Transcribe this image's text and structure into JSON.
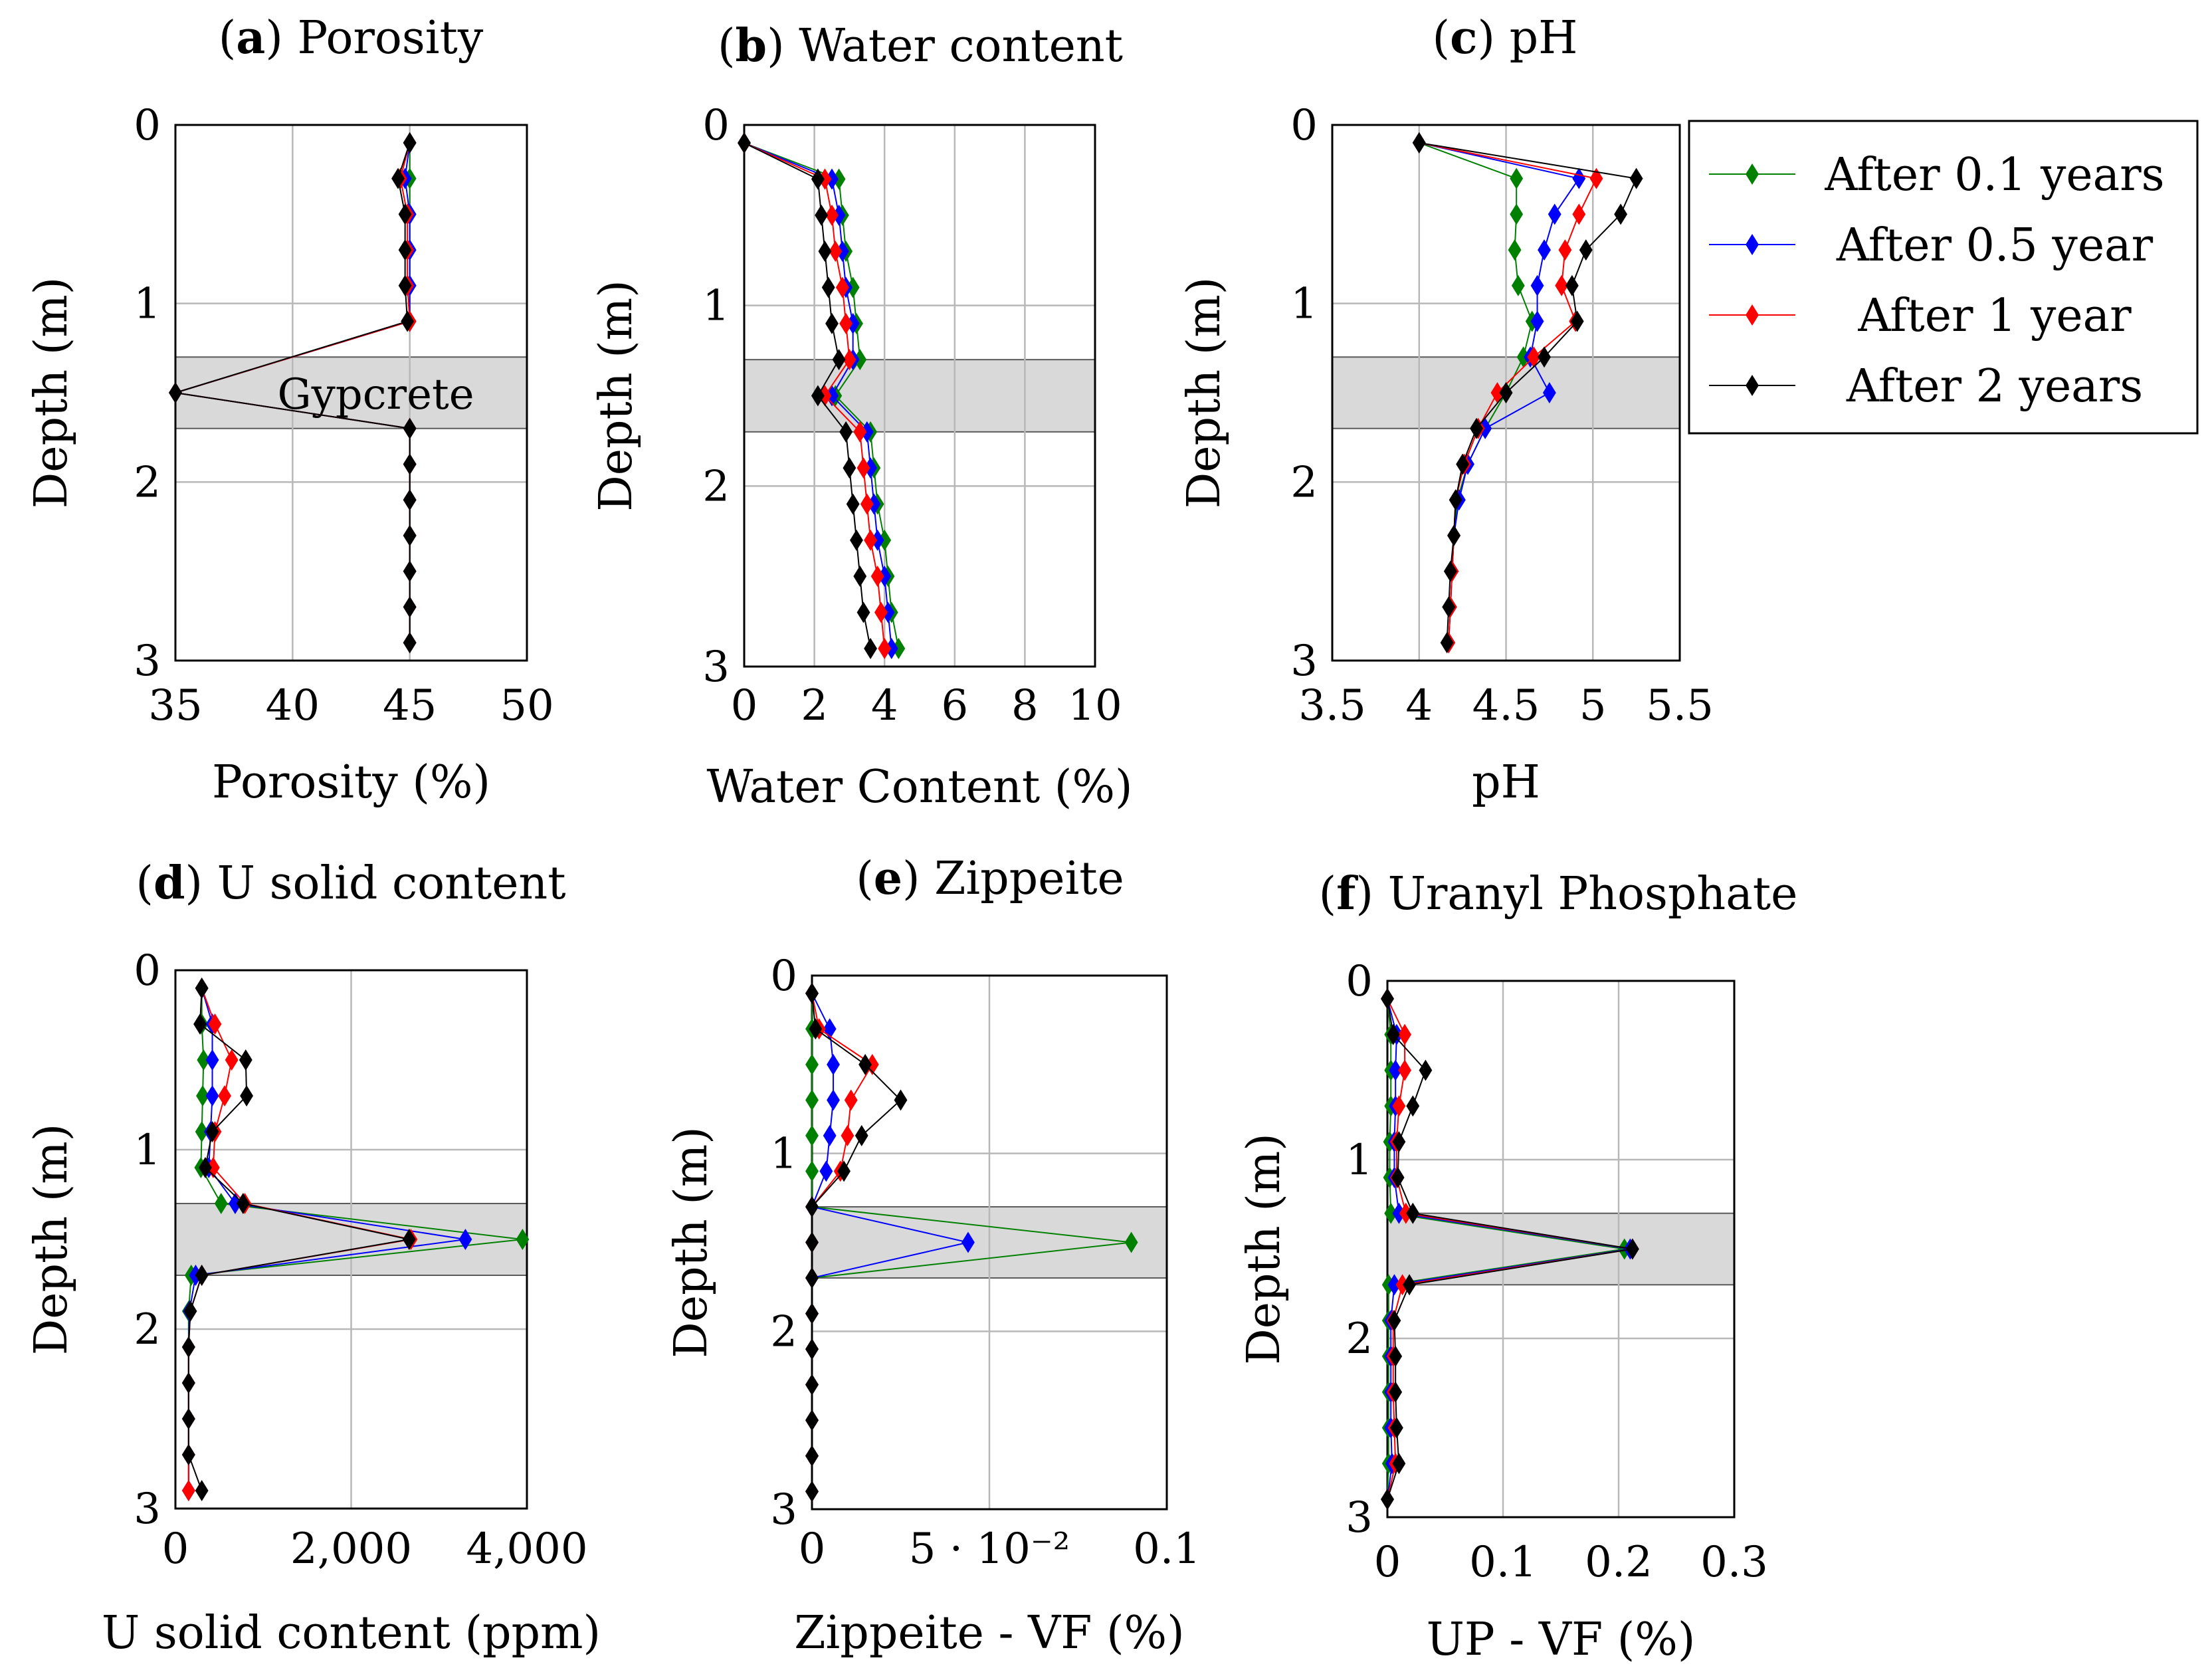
{
  "legend": {
    "entries": [
      {
        "name": "After 0.1 years",
        "color": "#008000"
      },
      {
        "name": "After 0.5 year",
        "color": "#0000ff"
      },
      {
        "name": "After 1 year",
        "color": "#ff0000"
      },
      {
        "name": "After 2 years",
        "color": "#000000"
      }
    ]
  },
  "chart_data": [
    {
      "type": "line",
      "title_letter": "a",
      "title_rest": " Porosity",
      "xlabel": "Porosity (%)",
      "ylabel": "Depth (m)",
      "xlim": [
        35,
        50
      ],
      "ylim": [
        0,
        3
      ],
      "y_inverted": true,
      "xticks": [
        35,
        40,
        45,
        50
      ],
      "xtick_labels": [
        "35",
        "40",
        "45",
        "50"
      ],
      "yticks": [
        0,
        1,
        2,
        3
      ],
      "ytick_labels": [
        "0",
        "1",
        "2",
        "3"
      ],
      "band": [
        1.3,
        1.7
      ],
      "band_label": "Gypcrete",
      "series": [
        {
          "name": "After 0.1 years",
          "x": [
            45,
            45,
            45,
            45,
            45,
            45,
            35,
            45,
            45,
            45,
            45,
            45,
            45,
            45
          ],
          "y": [
            0.1,
            0.3,
            0.5,
            0.7,
            0.9,
            1.1,
            1.5,
            1.7,
            1.9,
            2.1,
            2.3,
            2.5,
            2.7,
            2.9
          ]
        },
        {
          "name": "After 0.5 year",
          "x": [
            45,
            44.8,
            45,
            45,
            45,
            45,
            35,
            45,
            45,
            45,
            45,
            45,
            45,
            45
          ],
          "y": [
            0.1,
            0.3,
            0.5,
            0.7,
            0.9,
            1.1,
            1.5,
            1.7,
            1.9,
            2.1,
            2.3,
            2.5,
            2.7,
            2.9
          ]
        },
        {
          "name": "After 1 year",
          "x": [
            45,
            44.6,
            44.9,
            44.9,
            44.9,
            45,
            35,
            45,
            45,
            45,
            45,
            45,
            45,
            45
          ],
          "y": [
            0.1,
            0.3,
            0.5,
            0.7,
            0.9,
            1.1,
            1.5,
            1.7,
            1.9,
            2.1,
            2.3,
            2.5,
            2.7,
            2.9
          ]
        },
        {
          "name": "After 2 years",
          "x": [
            45,
            44.5,
            44.8,
            44.8,
            44.8,
            44.9,
            35,
            45,
            45,
            45,
            45,
            45,
            45,
            45
          ],
          "y": [
            0.1,
            0.3,
            0.5,
            0.7,
            0.9,
            1.1,
            1.5,
            1.7,
            1.9,
            2.1,
            2.3,
            2.5,
            2.7,
            2.9
          ]
        }
      ]
    },
    {
      "type": "line",
      "title_letter": "b",
      "title_rest": " Water content",
      "xlabel": "Water Content (%)",
      "ylabel": "Depth (m)",
      "xlim": [
        0,
        10
      ],
      "ylim": [
        0,
        3
      ],
      "y_inverted": true,
      "xticks": [
        0,
        2,
        4,
        6,
        8,
        10
      ],
      "xtick_labels": [
        "0",
        "2",
        "4",
        "6",
        "8",
        "10"
      ],
      "yticks": [
        0,
        1,
        2,
        3
      ],
      "ytick_labels": [
        "0",
        "1",
        "2",
        "3"
      ],
      "band": [
        1.3,
        1.7
      ],
      "band_label": "",
      "series": [
        {
          "name": "After 0.1 years",
          "x": [
            0,
            2.7,
            2.8,
            2.9,
            3.1,
            3.2,
            3.3,
            2.6,
            3.6,
            3.7,
            3.8,
            4.0,
            4.1,
            4.2,
            4.4
          ],
          "y": [
            0.1,
            0.3,
            0.5,
            0.7,
            0.9,
            1.1,
            1.3,
            1.5,
            1.7,
            1.9,
            2.1,
            2.3,
            2.5,
            2.7,
            2.9
          ]
        },
        {
          "name": "After 0.5 year",
          "x": [
            0,
            2.5,
            2.7,
            2.8,
            2.9,
            3.1,
            3.1,
            2.5,
            3.5,
            3.6,
            3.7,
            3.8,
            4.0,
            4.1,
            4.2
          ],
          "y": [
            0.1,
            0.3,
            0.5,
            0.7,
            0.9,
            1.1,
            1.3,
            1.5,
            1.7,
            1.9,
            2.1,
            2.3,
            2.5,
            2.7,
            2.9
          ]
        },
        {
          "name": "After 1 year",
          "x": [
            0,
            2.3,
            2.5,
            2.6,
            2.8,
            2.9,
            3.0,
            2.3,
            3.3,
            3.4,
            3.5,
            3.6,
            3.8,
            3.9,
            4.0
          ],
          "y": [
            0.1,
            0.3,
            0.5,
            0.7,
            0.9,
            1.1,
            1.3,
            1.5,
            1.7,
            1.9,
            2.1,
            2.3,
            2.5,
            2.7,
            2.9
          ]
        },
        {
          "name": "After 2 years",
          "x": [
            0,
            2.1,
            2.2,
            2.3,
            2.4,
            2.5,
            2.7,
            2.1,
            2.9,
            3.0,
            3.1,
            3.2,
            3.3,
            3.4,
            3.6
          ],
          "y": [
            0.1,
            0.3,
            0.5,
            0.7,
            0.9,
            1.1,
            1.3,
            1.5,
            1.7,
            1.9,
            2.1,
            2.3,
            2.5,
            2.7,
            2.9
          ]
        }
      ]
    },
    {
      "type": "line",
      "title_letter": "c",
      "title_rest": " pH",
      "xlabel": "pH",
      "ylabel": "Depth (m)",
      "xlim": [
        3.5,
        5.5
      ],
      "ylim": [
        0,
        3
      ],
      "y_inverted": true,
      "xticks": [
        3.5,
        4,
        4.5,
        5,
        5.5
      ],
      "xtick_labels": [
        "3.5",
        "4",
        "4.5",
        "5",
        "5.5"
      ],
      "yticks": [
        0,
        1,
        2,
        3
      ],
      "ytick_labels": [
        "0",
        "1",
        "2",
        "3"
      ],
      "band": [
        1.3,
        1.7
      ],
      "band_label": "",
      "series": [
        {
          "name": "After 0.1 years",
          "x": [
            4.0,
            4.56,
            4.56,
            4.55,
            4.57,
            4.65,
            4.6,
            4.5,
            4.38,
            4.28,
            4.22,
            4.2,
            4.19,
            4.18,
            4.17
          ],
          "y": [
            0.1,
            0.3,
            0.5,
            0.7,
            0.9,
            1.1,
            1.3,
            1.5,
            1.7,
            1.9,
            2.1,
            2.3,
            2.5,
            2.7,
            2.9
          ]
        },
        {
          "name": "After 0.5 year",
          "x": [
            4.0,
            4.92,
            4.78,
            4.72,
            4.68,
            4.68,
            4.64,
            4.75,
            4.38,
            4.28,
            4.23,
            4.2,
            4.19,
            4.18,
            4.17
          ],
          "y": [
            0.1,
            0.3,
            0.5,
            0.7,
            0.9,
            1.1,
            1.3,
            1.5,
            1.7,
            1.9,
            2.1,
            2.3,
            2.5,
            2.7,
            2.9
          ]
        },
        {
          "name": "After 1 year",
          "x": [
            4.0,
            5.02,
            4.92,
            4.84,
            4.82,
            4.9,
            4.66,
            4.45,
            4.34,
            4.26,
            4.21,
            4.2,
            4.19,
            4.18,
            4.17
          ],
          "y": [
            0.1,
            0.3,
            0.5,
            0.7,
            0.9,
            1.1,
            1.3,
            1.5,
            1.7,
            1.9,
            2.1,
            2.3,
            2.5,
            2.7,
            2.9
          ]
        },
        {
          "name": "After 2 years",
          "x": [
            4.0,
            5.25,
            5.16,
            4.96,
            4.88,
            4.91,
            4.72,
            4.5,
            4.33,
            4.25,
            4.21,
            4.2,
            4.18,
            4.17,
            4.16
          ],
          "y": [
            0.1,
            0.3,
            0.5,
            0.7,
            0.9,
            1.1,
            1.3,
            1.5,
            1.7,
            1.9,
            2.1,
            2.3,
            2.5,
            2.7,
            2.9
          ]
        }
      ]
    },
    {
      "type": "line",
      "title_letter": "d",
      "title_rest": " U solid content",
      "xlabel": "U solid content (ppm)",
      "ylabel": "Depth (m)",
      "xlim": [
        0,
        4000
      ],
      "ylim": [
        0,
        3
      ],
      "y_inverted": true,
      "xticks": [
        0,
        2000,
        4000
      ],
      "xtick_labels": [
        "0",
        "2,000",
        "4,000"
      ],
      "yticks": [
        0,
        1,
        2,
        3
      ],
      "ytick_labels": [
        "0",
        "1",
        "2",
        "3"
      ],
      "band": [
        1.3,
        1.7
      ],
      "band_label": "",
      "series": [
        {
          "name": "After 0.1 years",
          "x": [
            300,
            300,
            320,
            310,
            300,
            290,
            520,
            3950,
            180,
            150,
            150,
            150,
            150,
            150,
            150
          ],
          "y": [
            0.1,
            0.3,
            0.5,
            0.7,
            0.9,
            1.1,
            1.3,
            1.5,
            1.7,
            1.9,
            2.1,
            2.3,
            2.5,
            2.7,
            2.9
          ]
        },
        {
          "name": "After 0.5 year",
          "x": [
            300,
            420,
            420,
            420,
            400,
            380,
            680,
            3300,
            230,
            160,
            150,
            150,
            150,
            150,
            150
          ],
          "y": [
            0.1,
            0.3,
            0.5,
            0.7,
            0.9,
            1.1,
            1.3,
            1.5,
            1.7,
            1.9,
            2.1,
            2.3,
            2.5,
            2.7,
            2.9
          ]
        },
        {
          "name": "After 1 year",
          "x": [
            300,
            450,
            640,
            560,
            450,
            430,
            790,
            2680,
            300,
            170,
            150,
            150,
            150,
            150,
            150
          ],
          "y": [
            0.1,
            0.3,
            0.5,
            0.7,
            0.9,
            1.1,
            1.3,
            1.5,
            1.7,
            1.9,
            2.1,
            2.3,
            2.5,
            2.7,
            2.9
          ]
        },
        {
          "name": "After 2 years",
          "x": [
            300,
            280,
            800,
            810,
            420,
            340,
            770,
            2660,
            300,
            170,
            150,
            150,
            150,
            150,
            300
          ],
          "y": [
            0.1,
            0.3,
            0.5,
            0.7,
            0.9,
            1.1,
            1.3,
            1.5,
            1.7,
            1.9,
            2.1,
            2.3,
            2.5,
            2.7,
            2.9
          ]
        }
      ]
    },
    {
      "type": "line",
      "title_letter": "e",
      "title_rest": " Zippeite",
      "xlabel": "Zippeite - VF (%)",
      "ylabel": "Depth (m)",
      "xlim": [
        0,
        0.1
      ],
      "ylim": [
        0,
        3
      ],
      "y_inverted": true,
      "xticks": [
        0,
        0.05,
        0.1
      ],
      "xtick_labels": [
        "0",
        "5 · 10⁻²",
        "0.1"
      ],
      "yticks": [
        0,
        1,
        2,
        3
      ],
      "ytick_labels": [
        "0",
        "1",
        "2",
        "3"
      ],
      "band": [
        1.3,
        1.7
      ],
      "band_label": "",
      "series": [
        {
          "name": "After 0.1 years",
          "x": [
            0,
            0,
            0,
            0,
            0,
            0,
            0,
            0.09,
            0,
            0,
            0,
            0,
            0,
            0,
            0
          ],
          "y": [
            0.1,
            0.3,
            0.5,
            0.7,
            0.9,
            1.1,
            1.3,
            1.5,
            1.7,
            1.9,
            2.1,
            2.3,
            2.5,
            2.7,
            2.9
          ]
        },
        {
          "name": "After 0.5 year",
          "x": [
            0,
            0.005,
            0.006,
            0.006,
            0.005,
            0.004,
            0,
            0.044,
            0,
            0,
            0,
            0,
            0,
            0,
            0
          ],
          "y": [
            0.1,
            0.3,
            0.5,
            0.7,
            0.9,
            1.1,
            1.3,
            1.5,
            1.7,
            1.9,
            2.1,
            2.3,
            2.5,
            2.7,
            2.9
          ]
        },
        {
          "name": "After 1 year",
          "x": [
            0,
            0.002,
            0.017,
            0.011,
            0.01,
            0.008,
            0,
            0,
            0,
            0,
            0,
            0,
            0,
            0,
            0
          ],
          "y": [
            0.1,
            0.3,
            0.5,
            0.7,
            0.9,
            1.1,
            1.3,
            1.5,
            1.7,
            1.9,
            2.1,
            2.3,
            2.5,
            2.7,
            2.9
          ]
        },
        {
          "name": "After 2 years",
          "x": [
            0,
            0.001,
            0.015,
            0.025,
            0.014,
            0.009,
            0,
            0,
            0,
            0,
            0,
            0,
            0,
            0,
            0
          ],
          "y": [
            0.1,
            0.3,
            0.5,
            0.7,
            0.9,
            1.1,
            1.3,
            1.5,
            1.7,
            1.9,
            2.1,
            2.3,
            2.5,
            2.7,
            2.9
          ]
        }
      ]
    },
    {
      "type": "line",
      "title_letter": "f",
      "title_rest": " Uranyl Phosphate",
      "xlabel": "UP - VF (%)",
      "ylabel": "Depth (m)",
      "xlim": [
        0,
        0.3
      ],
      "ylim": [
        0,
        3
      ],
      "y_inverted": true,
      "xticks": [
        0,
        0.1,
        0.2,
        0.3
      ],
      "xtick_labels": [
        "0",
        "0.1",
        "0.2",
        "0.3"
      ],
      "yticks": [
        0,
        1,
        2,
        3
      ],
      "ytick_labels": [
        "0",
        "1",
        "2",
        "3"
      ],
      "band": [
        1.3,
        1.7
      ],
      "band_label": "",
      "series": [
        {
          "name": "After 0.1 years",
          "x": [
            0,
            0.003,
            0.003,
            0.003,
            0.002,
            0.002,
            0.003,
            0.205,
            0.001,
            0.001,
            0.001,
            0.001,
            0.001,
            0.001,
            0
          ],
          "y": [
            0.1,
            0.3,
            0.5,
            0.7,
            0.9,
            1.1,
            1.3,
            1.5,
            1.7,
            1.9,
            2.1,
            2.3,
            2.5,
            2.7,
            2.9
          ]
        },
        {
          "name": "After 0.5 year",
          "x": [
            0,
            0.008,
            0.007,
            0.007,
            0.006,
            0.006,
            0.01,
            0.21,
            0.006,
            0.003,
            0.003,
            0.003,
            0.003,
            0.004,
            0
          ],
          "y": [
            0.1,
            0.3,
            0.5,
            0.7,
            0.9,
            1.1,
            1.3,
            1.5,
            1.7,
            1.9,
            2.1,
            2.3,
            2.5,
            2.7,
            2.9
          ]
        },
        {
          "name": "After 1 year",
          "x": [
            0,
            0.015,
            0.015,
            0.01,
            0.008,
            0.008,
            0.016,
            0.212,
            0.013,
            0.005,
            0.005,
            0.005,
            0.006,
            0.007,
            0
          ],
          "y": [
            0.1,
            0.3,
            0.5,
            0.7,
            0.9,
            1.1,
            1.3,
            1.5,
            1.7,
            1.9,
            2.1,
            2.3,
            2.5,
            2.7,
            2.9
          ]
        },
        {
          "name": "After 2 years",
          "x": [
            0,
            0.005,
            0.033,
            0.022,
            0.01,
            0.009,
            0.022,
            0.212,
            0.019,
            0.006,
            0.007,
            0.007,
            0.008,
            0.01,
            0
          ],
          "y": [
            0.1,
            0.3,
            0.5,
            0.7,
            0.9,
            1.1,
            1.3,
            1.5,
            1.7,
            1.9,
            2.1,
            2.3,
            2.5,
            2.7,
            2.9
          ]
        }
      ]
    }
  ]
}
